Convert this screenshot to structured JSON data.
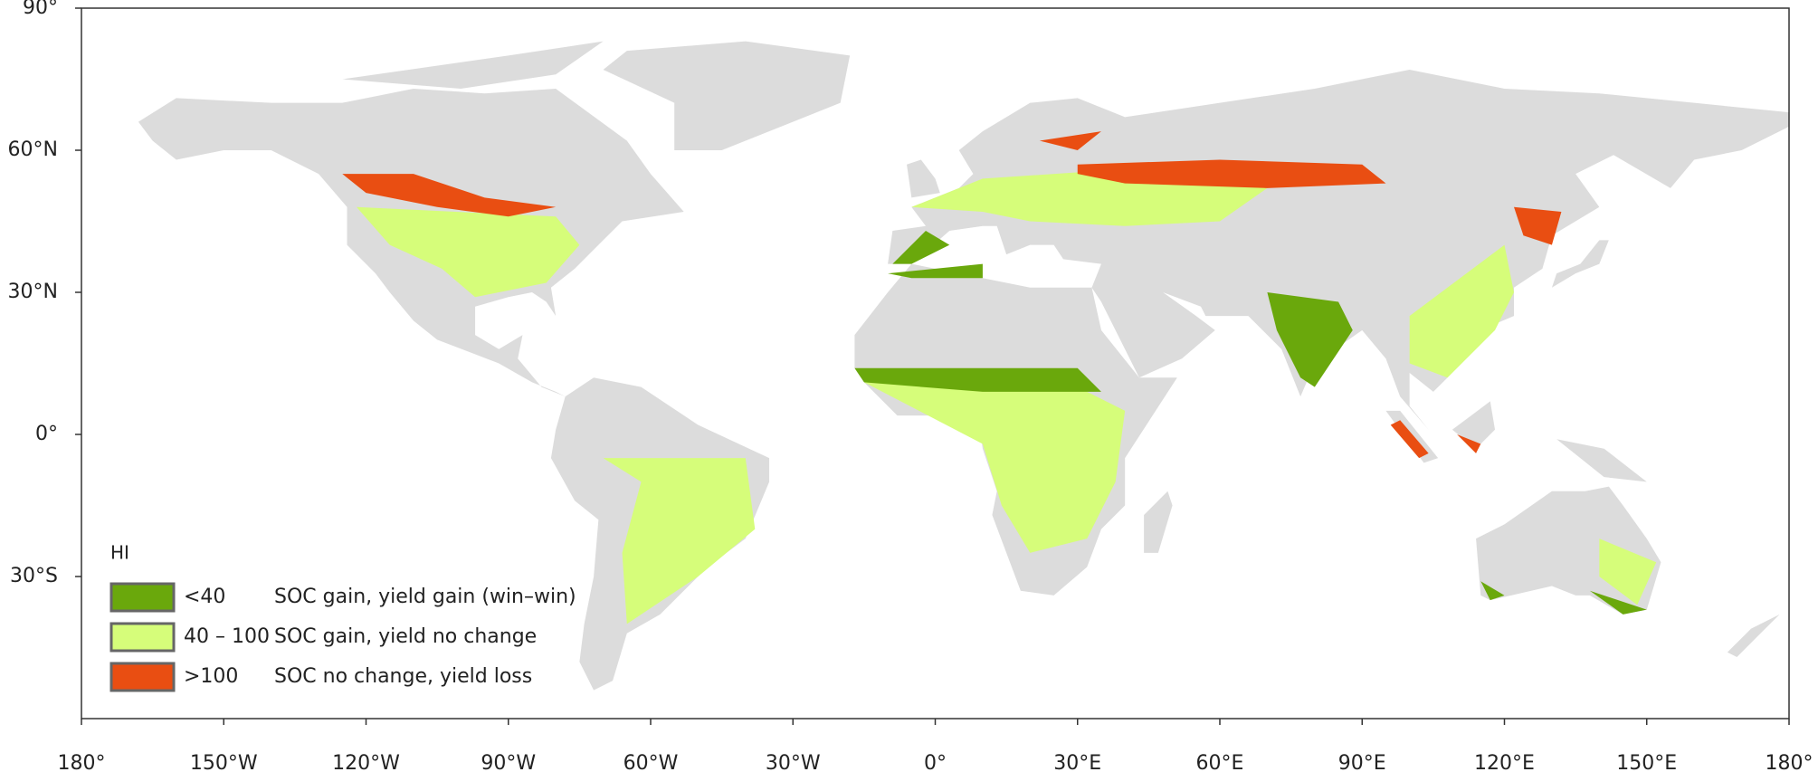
{
  "map": {
    "xlim": [
      -180,
      180
    ],
    "ylim": [
      -60,
      90
    ],
    "xticks": [
      {
        "value": -180,
        "label": "180°"
      },
      {
        "value": -150,
        "label": "150°W"
      },
      {
        "value": -120,
        "label": "120°W"
      },
      {
        "value": -90,
        "label": "90°W"
      },
      {
        "value": -60,
        "label": "60°W"
      },
      {
        "value": -30,
        "label": "30°W"
      },
      {
        "value": 0,
        "label": "0°"
      },
      {
        "value": 30,
        "label": "30°E"
      },
      {
        "value": 60,
        "label": "60°E"
      },
      {
        "value": 90,
        "label": "90°E"
      },
      {
        "value": 120,
        "label": "120°E"
      },
      {
        "value": 150,
        "label": "150°E"
      },
      {
        "value": 180,
        "label": "180°"
      }
    ],
    "yticks": [
      {
        "value": 90,
        "label": "90°"
      },
      {
        "value": 60,
        "label": "60°N"
      },
      {
        "value": 30,
        "label": "30°N"
      },
      {
        "value": 0,
        "label": "0°"
      },
      {
        "value": -30,
        "label": "30°S"
      }
    ],
    "legend": {
      "title": "HI",
      "items": [
        {
          "range": "<40",
          "label": "SOC gain, yield gain (win–win)",
          "color": "#6aa80c"
        },
        {
          "range": "40 – 100",
          "label": "SOC gain, yield no change",
          "color": "#d6fd7a"
        },
        {
          "range": ">100",
          "label": "SOC no change, yield loss",
          "color": "#e94e12"
        }
      ]
    }
  }
}
